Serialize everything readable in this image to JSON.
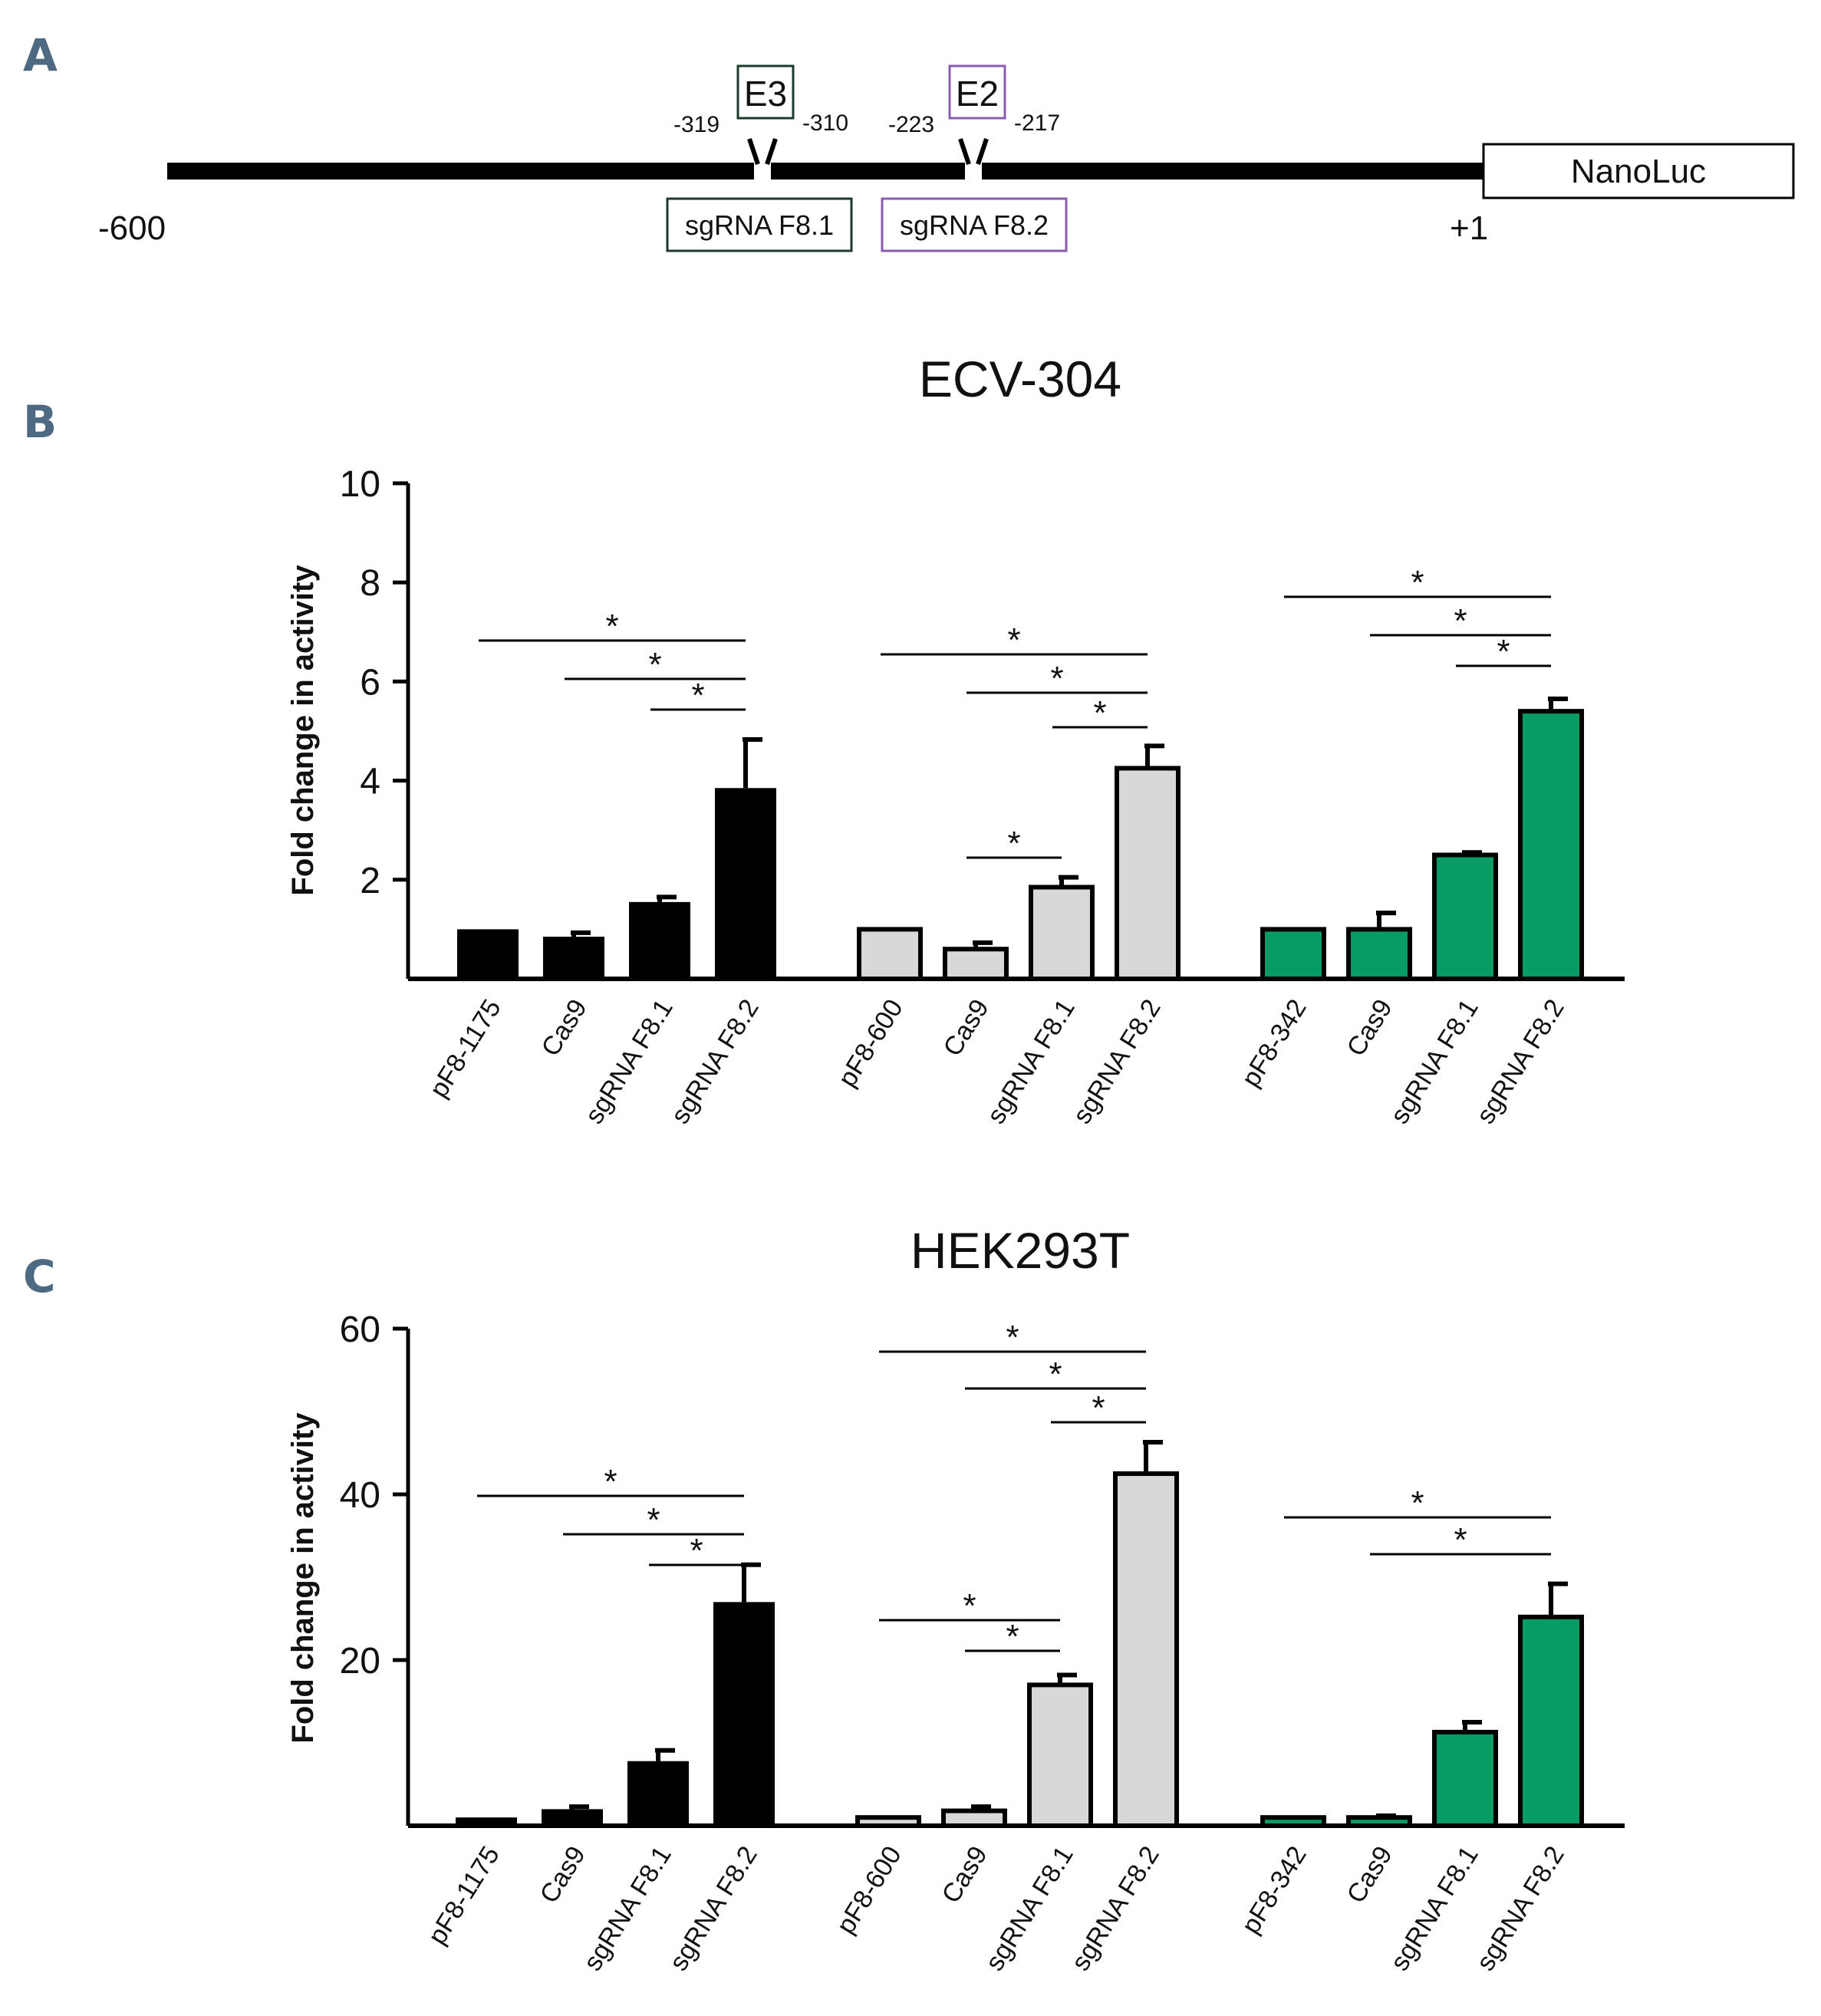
{
  "colors": {
    "black": "#000000",
    "grey": "#d8d8d8",
    "green": "#079c63",
    "e3_box": "#1e3a2c",
    "e2_box": "#8a5bb0",
    "panel_letter": "#4e6a82"
  },
  "panel_a": {
    "letter": "A",
    "e3": "E3",
    "e2": "E2",
    "pos_319": "-319",
    "pos_310": "-310",
    "pos_223": "-223",
    "pos_217": "-217",
    "start": "-600",
    "end": "+1",
    "reporter": "NanoLuc",
    "sgrna1": "sgRNA F8.1",
    "sgrna2": "sgRNA F8.2"
  },
  "chart_data": [
    {
      "panel": "B",
      "type": "bar",
      "title": "ECV-304",
      "ylabel": "Fold change in activity",
      "xlabel": "",
      "ylim": [
        0,
        10
      ],
      "yticks": [
        "10",
        "8",
        "6",
        "4",
        "2"
      ],
      "groups": [
        {
          "color": "black",
          "categories": [
            "pF8-1175",
            "Cas9",
            "sgRNA F8.1",
            "sgRNA F8.2"
          ],
          "values": [
            1.0,
            0.85,
            1.55,
            3.85
          ],
          "errors": [
            0,
            0.08,
            0.1,
            0.98
          ],
          "significance": [
            {
              "from": 0,
              "to": 3,
              "label": "*"
            },
            {
              "from": 1,
              "to": 3,
              "label": "*"
            },
            {
              "from": 2,
              "to": 3,
              "label": "*"
            }
          ]
        },
        {
          "color": "grey",
          "categories": [
            "pF8-600",
            "Cas9",
            "sgRNA F8.1",
            "sgRNA F8.2"
          ],
          "values": [
            1.0,
            0.6,
            1.85,
            4.25
          ],
          "errors": [
            0,
            0.13,
            0.2,
            0.45
          ],
          "significance": [
            {
              "from": 0,
              "to": 3,
              "label": "*"
            },
            {
              "from": 1,
              "to": 3,
              "label": "*"
            },
            {
              "from": 2,
              "to": 3,
              "label": "*"
            },
            {
              "from": 1,
              "to": 2,
              "label": "*"
            }
          ]
        },
        {
          "color": "green",
          "categories": [
            "pF8-342",
            "Cas9",
            "sgRNA F8.1",
            "sgRNA F8.2"
          ],
          "values": [
            1.0,
            1.0,
            2.5,
            5.4
          ],
          "errors": [
            0,
            0.33,
            0.05,
            0.25
          ],
          "significance": [
            {
              "from": 0,
              "to": 3,
              "label": "*"
            },
            {
              "from": 1,
              "to": 3,
              "label": "*"
            },
            {
              "from": 2,
              "to": 3,
              "label": "*"
            }
          ]
        }
      ]
    },
    {
      "panel": "C",
      "type": "bar",
      "title": "HEK293T",
      "ylabel": "Fold change in activity",
      "xlabel": "",
      "ylim": [
        0,
        60
      ],
      "yticks": [
        "60",
        "40",
        "20"
      ],
      "groups": [
        {
          "color": "black",
          "categories": [
            "pF8-1175",
            "Cas9",
            "sgRNA F8.1",
            "sgRNA F8.2"
          ],
          "values": [
            1.0,
            2.0,
            7.8,
            27.0
          ],
          "errors": [
            0,
            0.3,
            1.3,
            4.5
          ],
          "significance": [
            {
              "from": 0,
              "to": 3,
              "label": "*"
            },
            {
              "from": 1,
              "to": 3,
              "label": "*"
            },
            {
              "from": 2,
              "to": 3,
              "label": "*"
            }
          ]
        },
        {
          "color": "grey",
          "categories": [
            "pF8-600",
            "Cas9",
            "sgRNA F8.1",
            "sgRNA F8.2"
          ],
          "values": [
            1.0,
            1.8,
            17.0,
            42.5
          ],
          "errors": [
            0,
            0.5,
            1.2,
            3.8
          ],
          "significance": [
            {
              "from": 0,
              "to": 3,
              "label": "*"
            },
            {
              "from": 1,
              "to": 3,
              "label": "*"
            },
            {
              "from": 2,
              "to": 3,
              "label": "*"
            },
            {
              "from": 0,
              "to": 2,
              "label": "*"
            },
            {
              "from": 1,
              "to": 2,
              "label": "*"
            }
          ]
        },
        {
          "color": "green",
          "categories": [
            "pF8-342",
            "Cas9",
            "sgRNA F8.1",
            "sgRNA F8.2"
          ],
          "values": [
            1.0,
            1.0,
            11.3,
            25.2
          ],
          "errors": [
            0,
            0.2,
            1.2,
            4.0
          ],
          "significance": [
            {
              "from": 0,
              "to": 3,
              "label": "*"
            },
            {
              "from": 1,
              "to": 3,
              "label": "*"
            }
          ]
        }
      ]
    }
  ]
}
